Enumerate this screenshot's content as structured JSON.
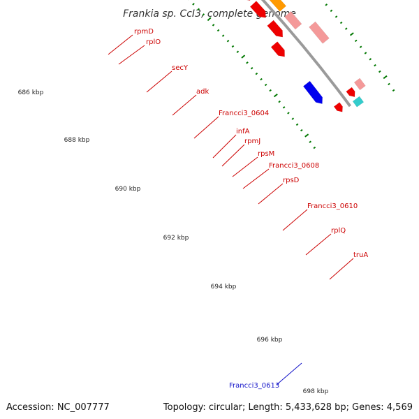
{
  "title": "Frankia sp. CcI3, complete genome",
  "accession": "Accession: NC_007777",
  "topology": "Topology: circular; Length: 5,433,628 bp; Genes: 4,569",
  "colors": {
    "backbone": "#9a9a9a",
    "gene_dark": "#ee0000",
    "gene_light": "#f49999",
    "gene_green": "#b8f05a",
    "gene_cyan": "#22aaee",
    "gene_orange": "#ff9900",
    "gene_blue": "#0000ee",
    "gene_teal": "#33cccc",
    "tick": "#007700",
    "label_red": "#cc0000",
    "label_blue": "#1010c8"
  },
  "scale_labels": [
    "686 kbp",
    "688 kbp",
    "690 kbp",
    "692 kbp",
    "694 kbp",
    "696 kbp",
    "698 kbp"
  ],
  "gene_labels": [
    {
      "name": "rpmD",
      "color": "red"
    },
    {
      "name": "rplO",
      "color": "red"
    },
    {
      "name": "secY",
      "color": "red"
    },
    {
      "name": "adk",
      "color": "red"
    },
    {
      "name": "Francci3_0604",
      "color": "red"
    },
    {
      "name": "infA",
      "color": "red"
    },
    {
      "name": "rpmJ",
      "color": "red"
    },
    {
      "name": "rpsM",
      "color": "red"
    },
    {
      "name": "Francci3_0608",
      "color": "red"
    },
    {
      "name": "rpsD",
      "color": "red"
    },
    {
      "name": "Francci3_0610",
      "color": "red"
    },
    {
      "name": "rplQ",
      "color": "red"
    },
    {
      "name": "truA",
      "color": "red"
    },
    {
      "name": "Francci3_0613",
      "color": "blue"
    }
  ]
}
